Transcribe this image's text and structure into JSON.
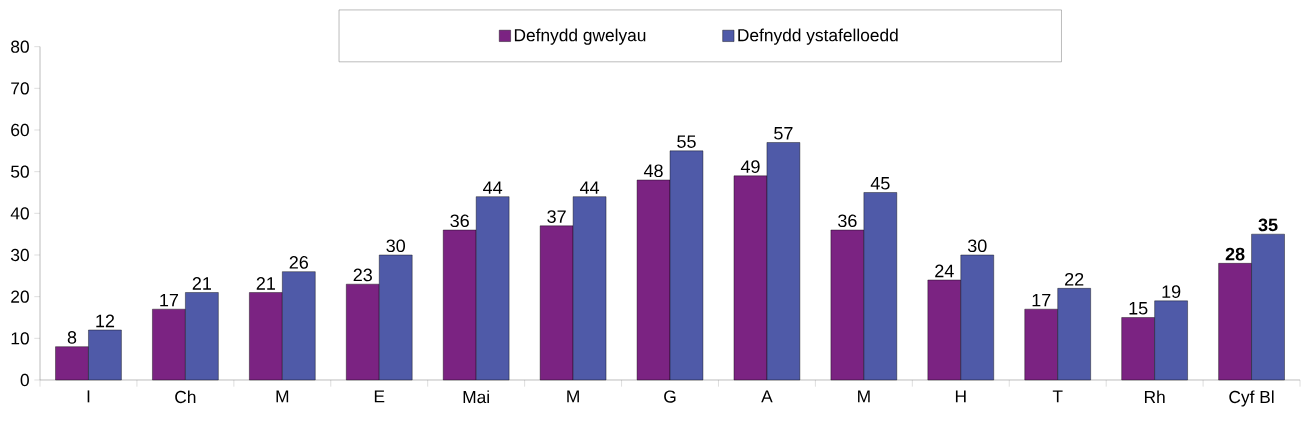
{
  "chart_data": {
    "type": "bar",
    "categories": [
      "I",
      "Ch",
      "M",
      "E",
      "Mai",
      "M",
      "G",
      "A",
      "M",
      "H",
      "T",
      "Rh",
      "Cyf Bl"
    ],
    "series": [
      {
        "name": "Defnydd gwelyau",
        "color": "#7b2382",
        "values": [
          8,
          17,
          21,
          23,
          36,
          37,
          48,
          49,
          36,
          24,
          17,
          15,
          28
        ],
        "value_labels": [
          "8",
          "17",
          "21",
          "23",
          "36",
          "37",
          "48",
          "49",
          "36",
          "24",
          "17",
          "15",
          "**28**"
        ]
      },
      {
        "name": "Defnydd ystafelloedd",
        "color": "#4f5aa8",
        "values": [
          12,
          21,
          26,
          30,
          44,
          44,
          55,
          57,
          45,
          30,
          22,
          19,
          35
        ],
        "value_labels": [
          "12",
          "21",
          "26",
          "30",
          "44",
          "44",
          "55",
          "57",
          "45",
          "30",
          "22",
          "19",
          "**35**"
        ]
      }
    ],
    "ylim": [
      0,
      80
    ],
    "yticks": [
      0,
      10,
      20,
      30,
      40,
      50,
      60,
      70,
      80
    ],
    "grid": false,
    "legend": "top"
  }
}
